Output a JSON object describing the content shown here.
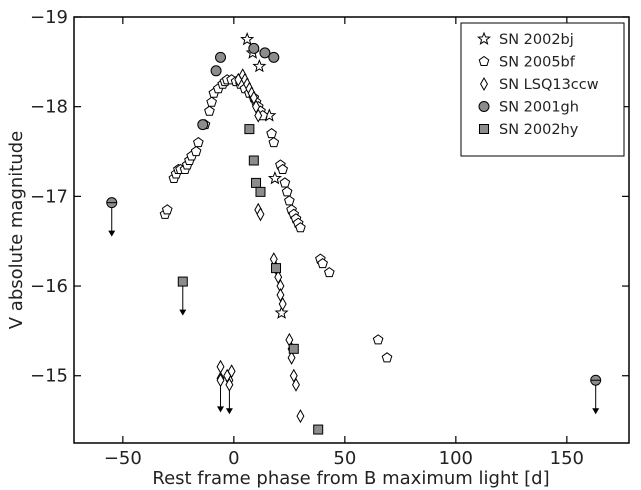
{
  "chart_data": {
    "type": "scatter",
    "title": "",
    "xlabel": "Rest frame phase from B maximum light [d]",
    "ylabel": "V absolute magnitude",
    "xlim": [
      -72,
      178
    ],
    "ylim": [
      -14.25,
      -19
    ],
    "y_inverted": true,
    "x_ticks": [
      -50,
      0,
      50,
      100,
      150
    ],
    "x_tick_labels": [
      "−50",
      "0",
      "50",
      "100",
      "150"
    ],
    "y_ticks": [
      -19,
      -18,
      -17,
      -16,
      -15
    ],
    "y_tick_labels": [
      "−19",
      "−18",
      "−17",
      "−16",
      "−15"
    ],
    "grid": false,
    "legend_position": "top-right",
    "series": [
      {
        "name": "SN 2002bj",
        "marker": "star",
        "color": "#ffffff",
        "points": [
          [
            6,
            -18.75
          ],
          [
            8.5,
            -18.6
          ],
          [
            11.5,
            -18.45
          ],
          [
            16,
            -17.9
          ],
          [
            18.5,
            -17.2
          ],
          [
            21.5,
            -15.7
          ]
        ]
      },
      {
        "name": "SN 2005bf",
        "marker": "pentagon",
        "color": "#ffffff",
        "points": [
          [
            -31,
            -16.8
          ],
          [
            -30,
            -16.85
          ],
          [
            -27,
            -17.2
          ],
          [
            -26,
            -17.25
          ],
          [
            -25,
            -17.3
          ],
          [
            -24,
            -17.3
          ],
          [
            -22,
            -17.3
          ],
          [
            -21,
            -17.35
          ],
          [
            -20,
            -17.4
          ],
          [
            -19,
            -17.45
          ],
          [
            -17,
            -17.5
          ],
          [
            -16,
            -17.6
          ],
          [
            -13,
            -17.8
          ],
          [
            -11,
            -17.95
          ],
          [
            -10,
            -18.05
          ],
          [
            -9,
            -18.15
          ],
          [
            -7,
            -18.2
          ],
          [
            -5,
            -18.25
          ],
          [
            -4,
            -18.28
          ],
          [
            -3,
            -18.3
          ],
          [
            -1,
            -18.3
          ],
          [
            1,
            -18.28
          ],
          [
            3,
            -18.25
          ],
          [
            5,
            -18.2
          ],
          [
            7,
            -18.15
          ],
          [
            9,
            -18.1
          ],
          [
            10,
            -18.05
          ],
          [
            11,
            -18.0
          ],
          [
            12,
            -17.95
          ],
          [
            13,
            -17.9
          ],
          [
            17,
            -17.7
          ],
          [
            18,
            -17.6
          ],
          [
            21,
            -17.35
          ],
          [
            22,
            -17.3
          ],
          [
            23,
            -17.15
          ],
          [
            24,
            -17.05
          ],
          [
            25,
            -16.95
          ],
          [
            26,
            -16.85
          ],
          [
            27,
            -16.8
          ],
          [
            28,
            -16.75
          ],
          [
            29,
            -16.7
          ],
          [
            30,
            -16.65
          ],
          [
            39,
            -16.3
          ],
          [
            40,
            -16.25
          ],
          [
            43,
            -16.15
          ],
          [
            65,
            -15.4
          ],
          [
            69,
            -15.2
          ]
        ]
      },
      {
        "name": "SN LSQ13ccw",
        "marker": "diamond",
        "color": "#ffffff",
        "points": [
          [
            -6,
            -15.1
          ],
          [
            -6,
            -14.95
          ],
          [
            -3,
            -15.0
          ],
          [
            -2,
            -14.9
          ],
          [
            -1,
            -15.05
          ],
          [
            2,
            -18.3
          ],
          [
            4,
            -18.35
          ],
          [
            5,
            -18.3
          ],
          [
            6,
            -18.25
          ],
          [
            7,
            -18.2
          ],
          [
            8,
            -18.15
          ],
          [
            9,
            -18.1
          ],
          [
            10,
            -18.0
          ],
          [
            11,
            -17.9
          ],
          [
            11,
            -16.85
          ],
          [
            12,
            -16.8
          ],
          [
            18,
            -16.3
          ],
          [
            19,
            -16.2
          ],
          [
            20,
            -16.1
          ],
          [
            21,
            -16.0
          ],
          [
            21,
            -15.9
          ],
          [
            22,
            -15.8
          ],
          [
            25,
            -15.4
          ],
          [
            26,
            -15.3
          ],
          [
            26,
            -15.2
          ],
          [
            27,
            -15.0
          ],
          [
            28,
            -14.9
          ],
          [
            30,
            -14.55
          ]
        ]
      },
      {
        "name": "SN 2001gh",
        "marker": "circle",
        "color": "#8c8c8c",
        "points": [
          [
            -14,
            -17.8
          ],
          [
            -8,
            -18.4
          ],
          [
            -6,
            -18.55
          ],
          [
            9,
            -18.65
          ],
          [
            14,
            -18.6
          ],
          [
            18,
            -18.55
          ]
        ]
      },
      {
        "name": "SN 2002hy",
        "marker": "square",
        "color": "#8c8c8c",
        "points": [
          [
            7,
            -17.75
          ],
          [
            9,
            -17.4
          ],
          [
            10,
            -17.15
          ],
          [
            12,
            -17.05
          ],
          [
            19,
            -16.2
          ],
          [
            27,
            -15.3
          ],
          [
            38,
            -14.4
          ]
        ]
      }
    ],
    "upper_limits": [
      {
        "x": -55,
        "y": -16.93,
        "marker": "circle-half"
      },
      {
        "x": -23,
        "y": -16.05,
        "marker": "square"
      },
      {
        "x": -6,
        "y": -14.97,
        "marker": "diamond"
      },
      {
        "x": -2,
        "y": -14.95,
        "marker": "diamond"
      },
      {
        "x": 163,
        "y": -14.95,
        "marker": "circle-half"
      }
    ]
  }
}
